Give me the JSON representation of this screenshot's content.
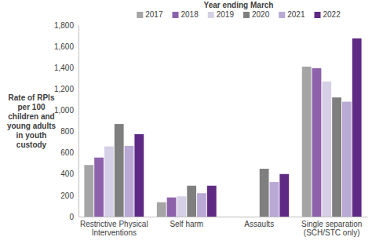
{
  "chart_data": {
    "type": "bar",
    "title": "Year ending March",
    "y_label": "Rate of RPIs per 100 children and young adults in youth custody",
    "categories": [
      "Restrictive Physical Interventions",
      "Self harm",
      "Assaults",
      "Single separation (SCH/STC only)"
    ],
    "series": [
      {
        "name": "2017",
        "color": "#a5a5a5",
        "values": [
          485,
          135,
          null,
          1410
        ]
      },
      {
        "name": "2018",
        "color": "#8d62ab",
        "values": [
          555,
          180,
          null,
          1395
        ]
      },
      {
        "name": "2019",
        "color": "#d6d0e6",
        "values": [
          660,
          190,
          null,
          1270
        ]
      },
      {
        "name": "2020",
        "color": "#7f7f7f",
        "values": [
          870,
          290,
          450,
          1120
        ]
      },
      {
        "name": "2021",
        "color": "#b9a9d4",
        "values": [
          665,
          220,
          325,
          1080
        ]
      },
      {
        "name": "2022",
        "color": "#5e2a84",
        "values": [
          775,
          290,
          400,
          1675
        ]
      }
    ],
    "ylim": [
      0,
      1800
    ],
    "yticks": [
      0,
      200,
      400,
      600,
      800,
      {
        "value": 1000,
        "label": "1,000"
      },
      {
        "value": 1200,
        "label": "1,200"
      },
      {
        "value": 1400,
        "label": "1,400"
      },
      {
        "value": 1600,
        "label": "1,600"
      },
      {
        "value": 1800,
        "label": "1,800"
      }
    ],
    "grid": false,
    "legend": "top"
  }
}
